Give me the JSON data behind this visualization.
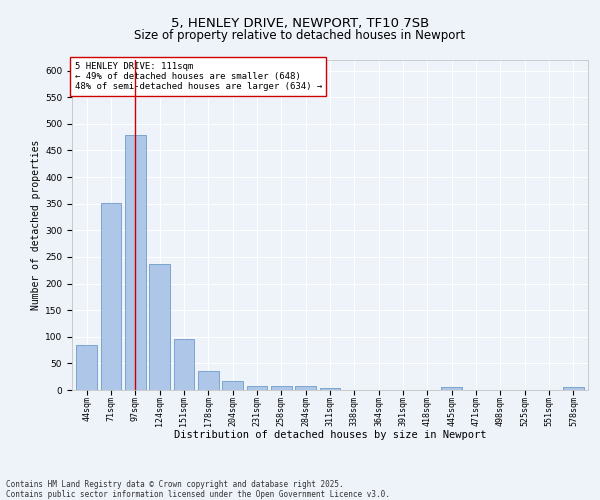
{
  "title": "5, HENLEY DRIVE, NEWPORT, TF10 7SB",
  "subtitle": "Size of property relative to detached houses in Newport",
  "xlabel": "Distribution of detached houses by size in Newport",
  "ylabel": "Number of detached properties",
  "categories": [
    "44sqm",
    "71sqm",
    "97sqm",
    "124sqm",
    "151sqm",
    "178sqm",
    "204sqm",
    "231sqm",
    "258sqm",
    "284sqm",
    "311sqm",
    "338sqm",
    "364sqm",
    "391sqm",
    "418sqm",
    "445sqm",
    "471sqm",
    "498sqm",
    "525sqm",
    "551sqm",
    "578sqm"
  ],
  "values": [
    85,
    352,
    480,
    237,
    96,
    36,
    16,
    7,
    8,
    8,
    4,
    0,
    0,
    0,
    0,
    5,
    0,
    0,
    0,
    0,
    5
  ],
  "bar_color": "#aec6e8",
  "bar_edge_color": "#5a8fc0",
  "background_color": "#eef2f9",
  "grid_color": "#ffffff",
  "vline_x": 2,
  "vline_color": "#cc0000",
  "annotation_text": "5 HENLEY DRIVE: 111sqm\n← 49% of detached houses are smaller (648)\n48% of semi-detached houses are larger (634) →",
  "annotation_box_color": "#ffffff",
  "annotation_box_edge": "#cc0000",
  "ylim": [
    0,
    620
  ],
  "yticks": [
    0,
    50,
    100,
    150,
    200,
    250,
    300,
    350,
    400,
    450,
    500,
    550,
    600
  ],
  "footer": "Contains HM Land Registry data © Crown copyright and database right 2025.\nContains public sector information licensed under the Open Government Licence v3.0.",
  "title_fontsize": 9.5,
  "subtitle_fontsize": 8.5,
  "annotation_fontsize": 6.5,
  "footer_fontsize": 5.5,
  "xlabel_fontsize": 7.5,
  "ylabel_fontsize": 7.0,
  "tick_fontsize": 6.0,
  "ytick_fontsize": 6.5
}
